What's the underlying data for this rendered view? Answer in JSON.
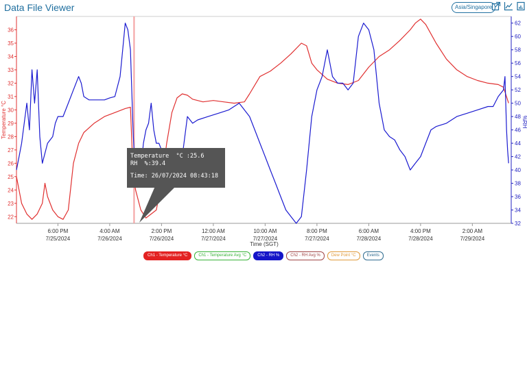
{
  "app": {
    "title": "Data File Viewer",
    "timezone_button": "Asia/Singapore"
  },
  "toolbar": {
    "icons": [
      "external-link-icon",
      "trend-icon",
      "download-icon"
    ]
  },
  "chart_data": {
    "type": "line",
    "xlabel": "Time (SGT)",
    "y_left_label": "Temperature °C",
    "y_right_label": "%RH",
    "y_left_range": [
      21.5,
      37
    ],
    "y_right_range": [
      32,
      63
    ],
    "y_left_ticks": [
      22,
      23,
      24,
      25,
      26,
      27,
      28,
      29,
      30,
      31,
      32,
      33,
      34,
      35,
      36
    ],
    "y_right_ticks": [
      32,
      34,
      36,
      38,
      40,
      42,
      44,
      46,
      48,
      50,
      52,
      54,
      56,
      58,
      60,
      62
    ],
    "x_ticks": [
      {
        "t": 13,
        "time": "6:00 PM",
        "date": "7/25/2024"
      },
      {
        "t": 23,
        "time": "4:00 AM",
        "date": "7/26/2024"
      },
      {
        "t": 33,
        "time": "2:00 PM",
        "date": "7/26/2024"
      },
      {
        "t": 43,
        "time": "12:00 AM",
        "date": "7/27/2024"
      },
      {
        "t": 53,
        "time": "10:00 AM",
        "date": "7/27/2024"
      },
      {
        "t": 63,
        "time": "8:00 PM",
        "date": "7/27/2024"
      },
      {
        "t": 73,
        "time": "6:00 AM",
        "date": "7/28/2024"
      },
      {
        "t": 83,
        "time": "4:00 PM",
        "date": "7/28/2024"
      },
      {
        "t": 93,
        "time": "2:00 AM",
        "date": "7/29/2024"
      }
    ],
    "x_range": [
      5,
      100.5
    ],
    "cursor_t": 27.7,
    "series": [
      {
        "name": "Ch1 - Temperature °C",
        "axis": "left",
        "color": "#e03030",
        "points": [
          [
            5,
            25
          ],
          [
            6,
            23
          ],
          [
            7,
            22.2
          ],
          [
            8,
            21.8
          ],
          [
            9,
            22.2
          ],
          [
            10,
            23
          ],
          [
            10.5,
            24.5
          ],
          [
            11,
            23.5
          ],
          [
            12,
            22.5
          ],
          [
            13,
            22
          ],
          [
            14,
            21.8
          ],
          [
            15,
            22.5
          ],
          [
            16,
            26
          ],
          [
            17,
            27.5
          ],
          [
            18,
            28.3
          ],
          [
            20,
            29
          ],
          [
            22,
            29.5
          ],
          [
            24,
            29.8
          ],
          [
            26,
            30.1
          ],
          [
            27,
            30.2
          ],
          [
            27.5,
            25.3
          ],
          [
            28,
            24
          ],
          [
            29,
            22.5
          ],
          [
            30,
            21.9
          ],
          [
            31,
            22.2
          ],
          [
            32,
            22.5
          ],
          [
            33,
            24.5
          ],
          [
            34,
            27.5
          ],
          [
            35,
            29.8
          ],
          [
            36,
            30.9
          ],
          [
            37,
            31.2
          ],
          [
            38,
            31.1
          ],
          [
            39,
            30.8
          ],
          [
            41,
            30.6
          ],
          [
            43,
            30.7
          ],
          [
            45,
            30.6
          ],
          [
            47,
            30.5
          ],
          [
            49,
            30.6
          ],
          [
            50,
            31.2
          ],
          [
            52,
            32.5
          ],
          [
            54,
            32.9
          ],
          [
            56,
            33.5
          ],
          [
            58,
            34.2
          ],
          [
            60,
            35
          ],
          [
            61,
            34.8
          ],
          [
            62,
            33.5
          ],
          [
            63,
            33
          ],
          [
            65,
            32.3
          ],
          [
            67,
            32
          ],
          [
            69,
            31.9
          ],
          [
            71,
            32.2
          ],
          [
            73,
            33.2
          ],
          [
            75,
            34
          ],
          [
            77,
            34.5
          ],
          [
            79,
            35.2
          ],
          [
            81,
            36
          ],
          [
            82,
            36.5
          ],
          [
            83,
            36.8
          ],
          [
            84,
            36.4
          ],
          [
            86,
            35
          ],
          [
            88,
            33.8
          ],
          [
            90,
            33
          ],
          [
            92,
            32.5
          ],
          [
            94,
            32.2
          ],
          [
            96,
            32
          ],
          [
            98,
            31.9
          ],
          [
            99,
            31.7
          ],
          [
            100,
            30.5
          ]
        ]
      },
      {
        "name": "Ch2 - RH %",
        "axis": "right",
        "color": "#1a1ad0",
        "points": [
          [
            5,
            40
          ],
          [
            5.5,
            42
          ],
          [
            6,
            44
          ],
          [
            7,
            50
          ],
          [
            7.5,
            46
          ],
          [
            8,
            55
          ],
          [
            8.5,
            50
          ],
          [
            9,
            55
          ],
          [
            9.5,
            45
          ],
          [
            10,
            41
          ],
          [
            11,
            44
          ],
          [
            12,
            45
          ],
          [
            12.5,
            47
          ],
          [
            13,
            48
          ],
          [
            14,
            48
          ],
          [
            15,
            50
          ],
          [
            16,
            52
          ],
          [
            17,
            54
          ],
          [
            17.5,
            53
          ],
          [
            18,
            51
          ],
          [
            19,
            50.5
          ],
          [
            20,
            50.5
          ],
          [
            21,
            50.5
          ],
          [
            22,
            50.5
          ],
          [
            23,
            50.8
          ],
          [
            24,
            51
          ],
          [
            25,
            54
          ],
          [
            25.5,
            58
          ],
          [
            26,
            62
          ],
          [
            26.5,
            61
          ],
          [
            27,
            58
          ],
          [
            27.5,
            46
          ],
          [
            28,
            38
          ],
          [
            28.5,
            42
          ],
          [
            29,
            40
          ],
          [
            29.5,
            44
          ],
          [
            30,
            46
          ],
          [
            30.5,
            47
          ],
          [
            31,
            50
          ],
          [
            31.5,
            46
          ],
          [
            32,
            44
          ],
          [
            32.5,
            44
          ],
          [
            33,
            43
          ],
          [
            33.5,
            40
          ],
          [
            34,
            40
          ],
          [
            35,
            41
          ],
          [
            36,
            41
          ],
          [
            37,
            42
          ],
          [
            38,
            48
          ],
          [
            39,
            47
          ],
          [
            40,
            47.5
          ],
          [
            42,
            48
          ],
          [
            44,
            48.5
          ],
          [
            46,
            49
          ],
          [
            48,
            50
          ],
          [
            50,
            48
          ],
          [
            51,
            46
          ],
          [
            52,
            44
          ],
          [
            53,
            42
          ],
          [
            54,
            40
          ],
          [
            55,
            38
          ],
          [
            56,
            36
          ],
          [
            57,
            34
          ],
          [
            58,
            33
          ],
          [
            59,
            32
          ],
          [
            60,
            33
          ],
          [
            61,
            40
          ],
          [
            62,
            48
          ],
          [
            63,
            52
          ],
          [
            64,
            54
          ],
          [
            64.5,
            56
          ],
          [
            65,
            58
          ],
          [
            65.5,
            56
          ],
          [
            66,
            54
          ],
          [
            67,
            53
          ],
          [
            68,
            53
          ],
          [
            69,
            52
          ],
          [
            70,
            53
          ],
          [
            71,
            60
          ],
          [
            72,
            62
          ],
          [
            73,
            61
          ],
          [
            74,
            58
          ],
          [
            75,
            50
          ],
          [
            76,
            46
          ],
          [
            77,
            45
          ],
          [
            78,
            44.5
          ],
          [
            79,
            43
          ],
          [
            80,
            42
          ],
          [
            81,
            40
          ],
          [
            82,
            41
          ],
          [
            83,
            42
          ],
          [
            84,
            44
          ],
          [
            85,
            46
          ],
          [
            86,
            46.5
          ],
          [
            88,
            47
          ],
          [
            90,
            48
          ],
          [
            92,
            48.5
          ],
          [
            94,
            49
          ],
          [
            96,
            49.5
          ],
          [
            97,
            49.5
          ],
          [
            98,
            51
          ],
          [
            99,
            52
          ],
          [
            99.3,
            54
          ],
          [
            99.6,
            46
          ],
          [
            99.8,
            43
          ],
          [
            100,
            41
          ]
        ]
      }
    ],
    "tooltip": {
      "line1": "Temperature  °C :25.6",
      "line2": "RH  %:39.4",
      "line3": "Time: 26/07/2024 08:43:18"
    },
    "legend": [
      {
        "label": "Ch1 - Temperature °C",
        "fill": "#e32222",
        "text": "#ffffff",
        "border": "#e32222"
      },
      {
        "label": "Ch1 - Temperature Avg °C",
        "fill": "#ffffff",
        "text": "#36b336",
        "border": "#36b336"
      },
      {
        "label": "Ch2 - RH %",
        "fill": "#1515c8",
        "text": "#ffffff",
        "border": "#1515c8"
      },
      {
        "label": "Ch2 - RH Avg %",
        "fill": "#ffffff",
        "text": "#a04545",
        "border": "#a04545"
      },
      {
        "label": "Dew Point °C",
        "fill": "#ffffff",
        "text": "#e09a3a",
        "border": "#e09a3a"
      },
      {
        "label": "Events",
        "fill": "#ffffff",
        "text": "#2e6b8f",
        "border": "#2e6b8f"
      }
    ]
  }
}
